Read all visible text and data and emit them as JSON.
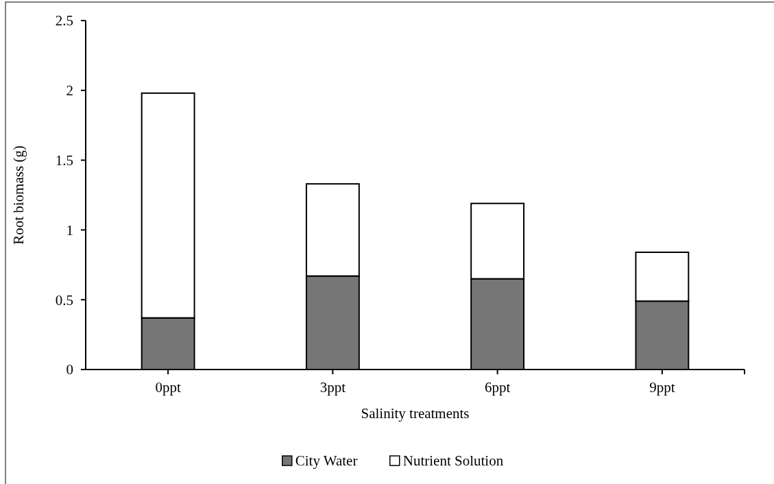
{
  "chart_data": {
    "type": "bar",
    "stacked": true,
    "xlabel": "Salinity treatments",
    "ylabel": "Root biomass  (g)",
    "categories": [
      "0ppt",
      "3ppt",
      "6ppt",
      "9ppt"
    ],
    "series": [
      {
        "name": "City Water",
        "color": "#767676",
        "values": [
          0.37,
          0.67,
          0.65,
          0.49
        ]
      },
      {
        "name": "Nutrient Solution",
        "color": "#ffffff",
        "values": [
          1.61,
          0.66,
          0.54,
          0.35
        ]
      }
    ],
    "ylim": [
      0,
      2.5
    ],
    "yticks": [
      0,
      0.5,
      1,
      1.5,
      2,
      2.5
    ],
    "legend": "bottom"
  }
}
